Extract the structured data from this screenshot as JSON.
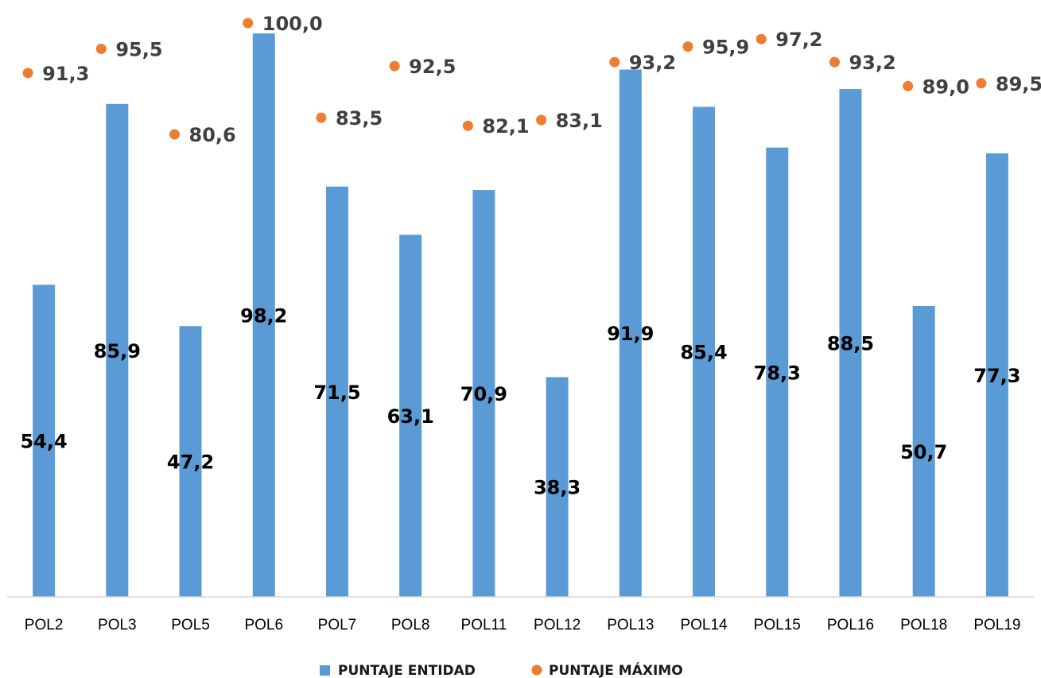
{
  "chart_data": {
    "type": "bar",
    "categories": [
      "POL2",
      "POL3",
      "POL5",
      "POL6",
      "POL7",
      "POL8",
      "POL11",
      "POL12",
      "POL13",
      "POL14",
      "POL15",
      "POL16",
      "POL18",
      "POL19"
    ],
    "series": [
      {
        "name": "PUNTAJE ENTIDAD",
        "kind": "bar",
        "color": "#5b9bd5",
        "values": [
          54.4,
          85.9,
          47.2,
          98.2,
          71.5,
          63.1,
          70.9,
          38.3,
          91.9,
          85.4,
          78.3,
          88.5,
          50.7,
          77.3
        ],
        "labels": [
          "54,4",
          "85,9",
          "47,2",
          "98,2",
          "71,5",
          "63,1",
          "70,9",
          "38,3",
          "91,9",
          "85,4",
          "78,3",
          "88,5",
          "50,7",
          "77,3"
        ]
      },
      {
        "name": "PUNTAJE MÁXIMO",
        "kind": "scatter",
        "color": "#ed7d31",
        "values": [
          91.3,
          95.5,
          80.6,
          100.0,
          83.5,
          92.5,
          82.1,
          83.1,
          93.2,
          95.9,
          97.2,
          93.2,
          89.0,
          89.5
        ],
        "labels": [
          "91,3",
          "95,5",
          "80,6",
          "100,0",
          "83,5",
          "92,5",
          "82,1",
          "83,1",
          "93,2",
          "95,9",
          "97,2",
          "93,2",
          "89,0",
          "89,5"
        ]
      }
    ],
    "title": "",
    "xlabel": "",
    "ylabel": "",
    "legend_position": "bottom",
    "grid": false
  }
}
